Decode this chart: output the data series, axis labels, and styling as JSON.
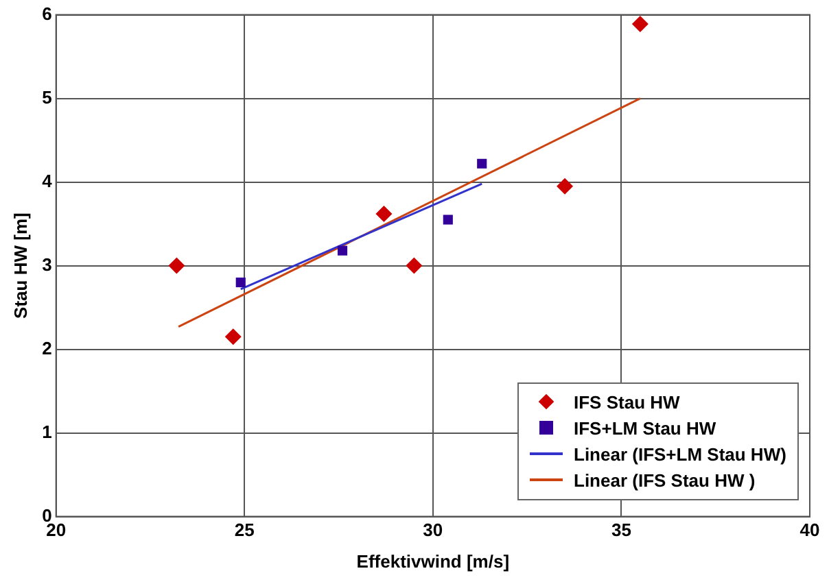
{
  "chart_data": {
    "type": "scatter",
    "xlabel": "Effektivwind [m/s]",
    "ylabel": "Stau HW [m]",
    "xlim": [
      20,
      40
    ],
    "xticks": [
      20,
      25,
      30,
      35,
      40
    ],
    "ylim": [
      0,
      6
    ],
    "yticks": [
      0,
      1,
      2,
      3,
      4,
      5,
      6
    ],
    "grid": true,
    "legend": "bottom right",
    "series": [
      {
        "name": "IFS Stau HW",
        "type": "scatter",
        "marker": "diamond",
        "color": "#cc0000",
        "x": [
          23.2,
          24.7,
          28.7,
          29.5,
          33.5,
          35.5
        ],
        "values": [
          3.0,
          2.15,
          3.62,
          3.0,
          3.95,
          5.89
        ]
      },
      {
        "name": "IFS+LM Stau HW",
        "type": "scatter",
        "marker": "square",
        "color": "#330099",
        "x": [
          24.9,
          27.6,
          30.4,
          31.3
        ],
        "values": [
          2.8,
          3.18,
          3.55,
          4.22
        ]
      },
      {
        "name": "Linear (IFS+LM Stau HW)",
        "type": "line",
        "marker": "none",
        "line_style": "solid",
        "color": "#3333cc",
        "x": [
          24.9,
          31.3
        ],
        "values": [
          2.72,
          3.98
        ]
      },
      {
        "name": "Linear (IFS Stau HW )",
        "type": "line",
        "marker": "none",
        "line_style": "solid",
        "color": "#cc4411",
        "x": [
          23.25,
          35.5
        ],
        "values": [
          2.27,
          5.0
        ]
      }
    ]
  }
}
